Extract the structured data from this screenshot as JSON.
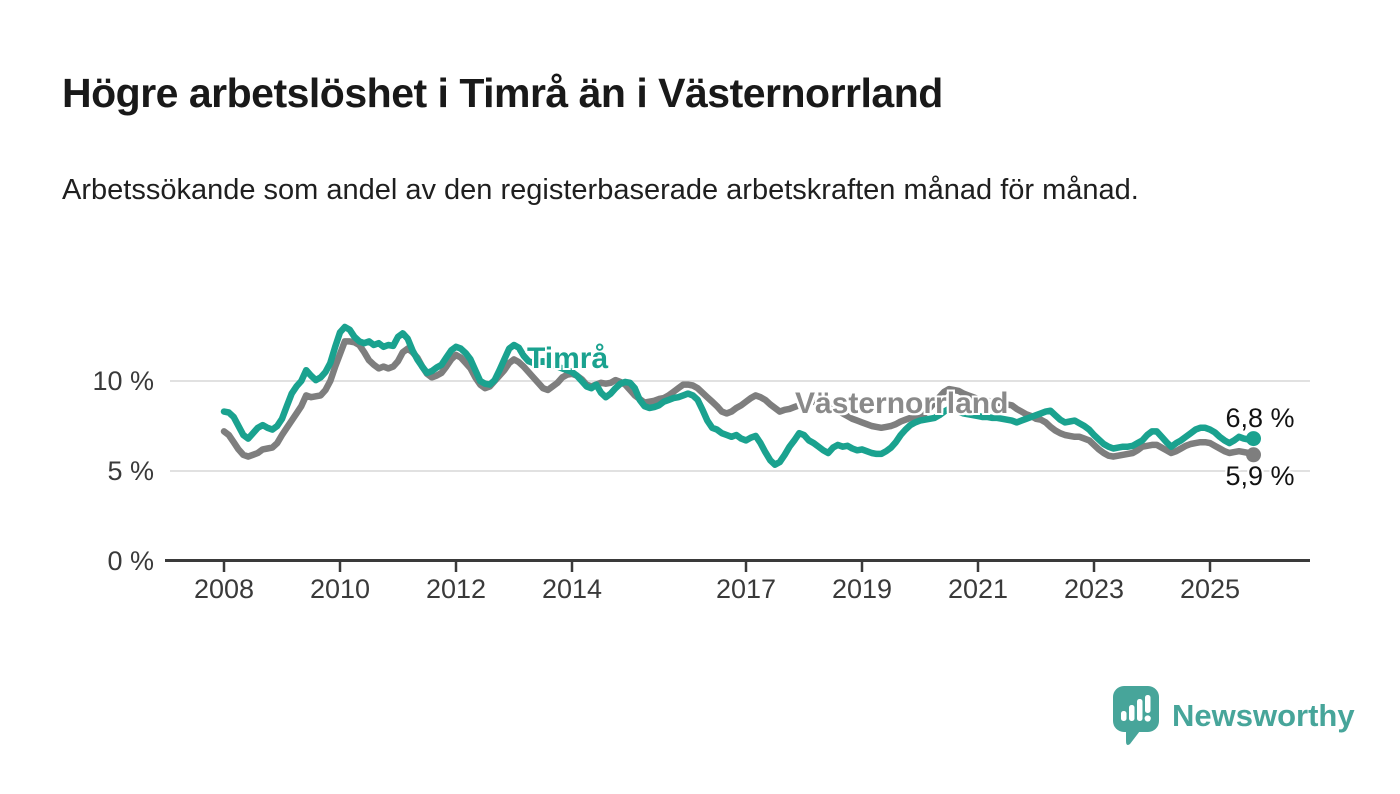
{
  "header": {
    "title": "Högre arbetslöshet i Timrå än i Västernorrland",
    "subtitle": "Arbetssökande som andel av den registerbaserade arbetskraften månad för månad."
  },
  "chart_data": {
    "type": "line",
    "title": "Högre arbetslöshet i Timrå än i Västernorrland",
    "subtitle": "Arbetssökande som andel av den registerbaserade arbetskraften månad för månad.",
    "unit": "%",
    "grid": true,
    "legend_position": "inline-labels-on-lines",
    "x_axis": {
      "start_year": 2008,
      "points_per_year": 12,
      "range": [
        2008,
        2025.83
      ],
      "tick_years": [
        2008,
        2010,
        2012,
        2014,
        2017,
        2019,
        2021,
        2023,
        2025
      ]
    },
    "y_axis": {
      "tick_labels": [
        "10 %",
        "5 %",
        "0 %"
      ],
      "tick_values": [
        10,
        5,
        0
      ],
      "range": [
        0,
        13.5
      ]
    },
    "series": [
      {
        "name": "Timrå",
        "color": "#1aa28f",
        "end_label": "6,8 %",
        "end_value": 6.8,
        "values": [
          8.3,
          8.25,
          8.0,
          7.5,
          7.0,
          6.8,
          7.1,
          7.4,
          7.55,
          7.4,
          7.3,
          7.5,
          7.9,
          8.6,
          9.3,
          9.7,
          10.0,
          10.6,
          10.3,
          10.05,
          10.2,
          10.5,
          11.0,
          11.9,
          12.7,
          13.0,
          12.85,
          12.45,
          12.2,
          12.1,
          12.2,
          12.0,
          12.1,
          11.9,
          12.0,
          11.95,
          12.45,
          12.65,
          12.35,
          11.7,
          11.2,
          10.8,
          10.45,
          10.55,
          10.75,
          10.9,
          11.3,
          11.7,
          11.9,
          11.8,
          11.55,
          11.2,
          10.6,
          10.0,
          9.85,
          9.8,
          10.05,
          10.6,
          11.2,
          11.8,
          12.0,
          11.85,
          11.4,
          11.1,
          11.0,
          11.05,
          11.1,
          11.0,
          10.9,
          10.8,
          10.7,
          10.6,
          10.5,
          10.3,
          10.0,
          9.7,
          9.6,
          9.8,
          9.35,
          9.1,
          9.3,
          9.6,
          9.85,
          9.95,
          9.9,
          9.6,
          8.95,
          8.6,
          8.5,
          8.55,
          8.65,
          8.85,
          8.95,
          9.05,
          9.1,
          9.2,
          9.3,
          9.2,
          8.95,
          8.4,
          7.8,
          7.4,
          7.3,
          7.1,
          7.0,
          6.9,
          7.0,
          6.8,
          6.7,
          6.85,
          6.95,
          6.55,
          6.05,
          5.6,
          5.35,
          5.5,
          5.9,
          6.35,
          6.7,
          7.1,
          7.0,
          6.7,
          6.55,
          6.35,
          6.15,
          6.0,
          6.3,
          6.45,
          6.35,
          6.4,
          6.25,
          6.15,
          6.2,
          6.1,
          6.0,
          5.95,
          5.95,
          6.1,
          6.3,
          6.6,
          7.0,
          7.3,
          7.55,
          7.7,
          7.8,
          7.85,
          7.9,
          7.95,
          8.1,
          8.3,
          8.45,
          8.4,
          8.3,
          8.2,
          8.15,
          8.1,
          8.05,
          8.0,
          8.0,
          7.95,
          7.95,
          7.9,
          7.85,
          7.8,
          7.7,
          7.8,
          7.9,
          8.0,
          8.1,
          8.2,
          8.3,
          8.35,
          8.1,
          7.85,
          7.7,
          7.75,
          7.8,
          7.65,
          7.5,
          7.3,
          7.0,
          6.75,
          6.5,
          6.35,
          6.25,
          6.3,
          6.35,
          6.35,
          6.4,
          6.55,
          6.7,
          7.0,
          7.2,
          7.2,
          6.9,
          6.6,
          6.35,
          6.55,
          6.7,
          6.9,
          7.1,
          7.3,
          7.4,
          7.4,
          7.3,
          7.15,
          6.9,
          6.7,
          6.55,
          6.7,
          6.9,
          6.8,
          6.75,
          6.8
        ]
      },
      {
        "name": "Västernorrland",
        "color": "#7e7e7e",
        "end_label": "5,9 %",
        "end_value": 5.9,
        "values": [
          7.2,
          7.0,
          6.6,
          6.2,
          5.9,
          5.8,
          5.9,
          6.0,
          6.2,
          6.25,
          6.3,
          6.55,
          7.0,
          7.4,
          7.8,
          8.2,
          8.6,
          9.2,
          9.1,
          9.15,
          9.2,
          9.5,
          10.0,
          10.8,
          11.5,
          12.2,
          12.2,
          12.15,
          12.0,
          11.6,
          11.15,
          10.9,
          10.7,
          10.8,
          10.7,
          10.8,
          11.1,
          11.6,
          11.8,
          11.6,
          11.3,
          10.8,
          10.4,
          10.2,
          10.3,
          10.45,
          10.8,
          11.2,
          11.45,
          11.3,
          11.0,
          10.7,
          10.2,
          9.8,
          9.6,
          9.7,
          10.0,
          10.3,
          10.6,
          11.0,
          11.2,
          11.05,
          10.8,
          10.5,
          10.2,
          9.9,
          9.6,
          9.5,
          9.7,
          9.9,
          10.2,
          10.35,
          10.4,
          10.3,
          10.1,
          9.8,
          9.7,
          9.8,
          9.9,
          9.85,
          9.9,
          10.05,
          9.95,
          9.8,
          9.5,
          9.2,
          9.0,
          8.8,
          8.85,
          8.9,
          9.0,
          9.05,
          9.2,
          9.4,
          9.6,
          9.8,
          9.8,
          9.75,
          9.6,
          9.35,
          9.1,
          8.85,
          8.6,
          8.3,
          8.2,
          8.3,
          8.5,
          8.65,
          8.85,
          9.05,
          9.2,
          9.1,
          8.95,
          8.7,
          8.5,
          8.3,
          8.4,
          8.45,
          8.55,
          8.65,
          8.7,
          8.8,
          8.85,
          8.9,
          8.85,
          8.7,
          8.5,
          8.35,
          8.2,
          8.05,
          7.9,
          7.8,
          7.7,
          7.6,
          7.5,
          7.45,
          7.4,
          7.45,
          7.5,
          7.6,
          7.75,
          7.85,
          7.95,
          8.0,
          8.1,
          8.2,
          8.5,
          8.8,
          9.1,
          9.4,
          9.55,
          9.5,
          9.45,
          9.3,
          9.2,
          9.1,
          9.0,
          8.95,
          8.9,
          8.85,
          8.8,
          8.75,
          8.7,
          8.65,
          8.45,
          8.3,
          8.15,
          8.05,
          7.9,
          7.85,
          7.7,
          7.45,
          7.25,
          7.1,
          7.0,
          6.95,
          6.9,
          6.9,
          6.8,
          6.7,
          6.45,
          6.2,
          6.0,
          5.85,
          5.8,
          5.85,
          5.9,
          5.95,
          6.0,
          6.15,
          6.35,
          6.4,
          6.45,
          6.45,
          6.3,
          6.15,
          6.0,
          6.1,
          6.25,
          6.4,
          6.5,
          6.55,
          6.6,
          6.6,
          6.55,
          6.4,
          6.25,
          6.1,
          6.0,
          6.05,
          6.1,
          6.05,
          6.0,
          5.9
        ]
      }
    ],
    "style": {
      "grid_color": "#e1e1e1",
      "axis_color": "#3a3a3a",
      "background": "#ffffff"
    }
  },
  "branding": {
    "logo_text": "Newsworthy",
    "logo_color": "#47a59a",
    "logo_icon": "bar-chart-speech-bubble-icon"
  }
}
